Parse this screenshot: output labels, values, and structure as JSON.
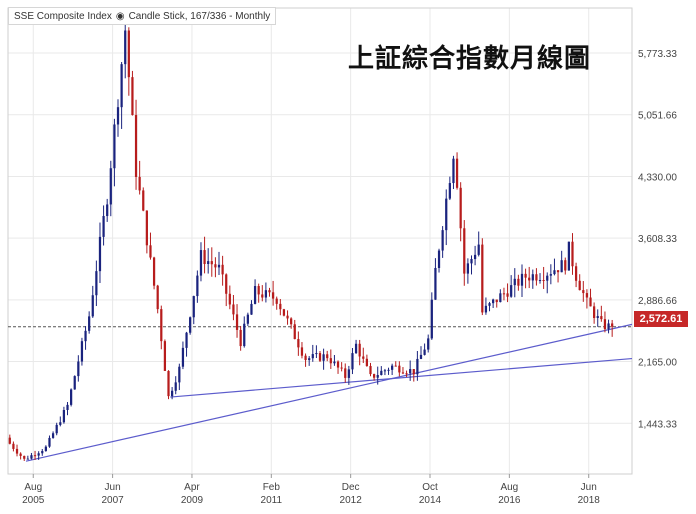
{
  "legend": {
    "symbol": "SSE Composite Index",
    "icon": "eye-icon",
    "info": "Candle Stick, 167/336 - Monthly"
  },
  "overlay_title": "上証綜合指數月線圖",
  "last_price": "2,572.61",
  "colors": {
    "up": "#1a237e",
    "down": "#b71c1c",
    "trendline": "#5c5ccc",
    "last_badge": "#c62828"
  },
  "chart_data": {
    "type": "candlestick",
    "title": "",
    "xlabel": "",
    "ylabel": "",
    "ylim": [
      850,
      6300
    ],
    "x_ticks": [
      {
        "month": "Aug",
        "year": "2005"
      },
      {
        "month": "Jun",
        "year": "2007"
      },
      {
        "month": "Apr",
        "year": "2009"
      },
      {
        "month": "Feb",
        "year": "2011"
      },
      {
        "month": "Dec",
        "year": "2012"
      },
      {
        "month": "Oct",
        "year": "2014"
      },
      {
        "month": "Aug",
        "year": "2016"
      },
      {
        "month": "Jun",
        "year": "2018"
      }
    ],
    "y_ticks": [
      1443.33,
      2165.0,
      2886.66,
      3608.33,
      4330.0,
      5051.66,
      5773.33
    ],
    "y_tick_labels": [
      "1,443.33",
      "2,165.00",
      "2,886.66",
      "3,608.33",
      "4,330.00",
      "5,051.66",
      "5,773.33"
    ],
    "last_value": 2572.61,
    "trendlines": [
      {
        "name": "trendline-1",
        "points": [
          [
            "2005-06",
            1000
          ],
          [
            "2019-06",
            2600
          ]
        ]
      },
      {
        "name": "trendline-2",
        "points": [
          [
            "2008-10",
            1750
          ],
          [
            "2019-06",
            2200
          ]
        ]
      }
    ],
    "price_path": [
      [
        "2005-01",
        1250
      ],
      [
        "2005-06",
        1020
      ],
      [
        "2005-12",
        1160
      ],
      [
        "2006-06",
        1650
      ],
      [
        "2006-12",
        2700
      ],
      [
        "2007-05",
        4100
      ],
      [
        "2007-10",
        6050
      ],
      [
        "2008-01",
        4400
      ],
      [
        "2008-04",
        3600
      ],
      [
        "2008-07",
        2780
      ],
      [
        "2008-10",
        1750
      ],
      [
        "2009-01",
        2080
      ],
      [
        "2009-07",
        3400
      ],
      [
        "2009-12",
        3250
      ],
      [
        "2010-06",
        2400
      ],
      [
        "2010-10",
        2980
      ],
      [
        "2011-04",
        2900
      ],
      [
        "2011-12",
        2200
      ],
      [
        "2012-06",
        2230
      ],
      [
        "2012-11",
        1990
      ],
      [
        "2013-02",
        2360
      ],
      [
        "2013-06",
        1980
      ],
      [
        "2013-12",
        2110
      ],
      [
        "2014-06",
        2050
      ],
      [
        "2014-10",
        2420
      ],
      [
        "2014-12",
        3230
      ],
      [
        "2015-05",
        4620
      ],
      [
        "2015-06",
        4280
      ],
      [
        "2015-08",
        3200
      ],
      [
        "2015-12",
        3540
      ],
      [
        "2016-01",
        2740
      ],
      [
        "2016-06",
        2930
      ],
      [
        "2017-01",
        3160
      ],
      [
        "2017-06",
        3190
      ],
      [
        "2017-12",
        3310
      ],
      [
        "2018-01",
        3480
      ],
      [
        "2018-03",
        3170
      ],
      [
        "2018-06",
        2850
      ],
      [
        "2018-10",
        2600
      ],
      [
        "2018-12",
        2572.61
      ]
    ]
  }
}
